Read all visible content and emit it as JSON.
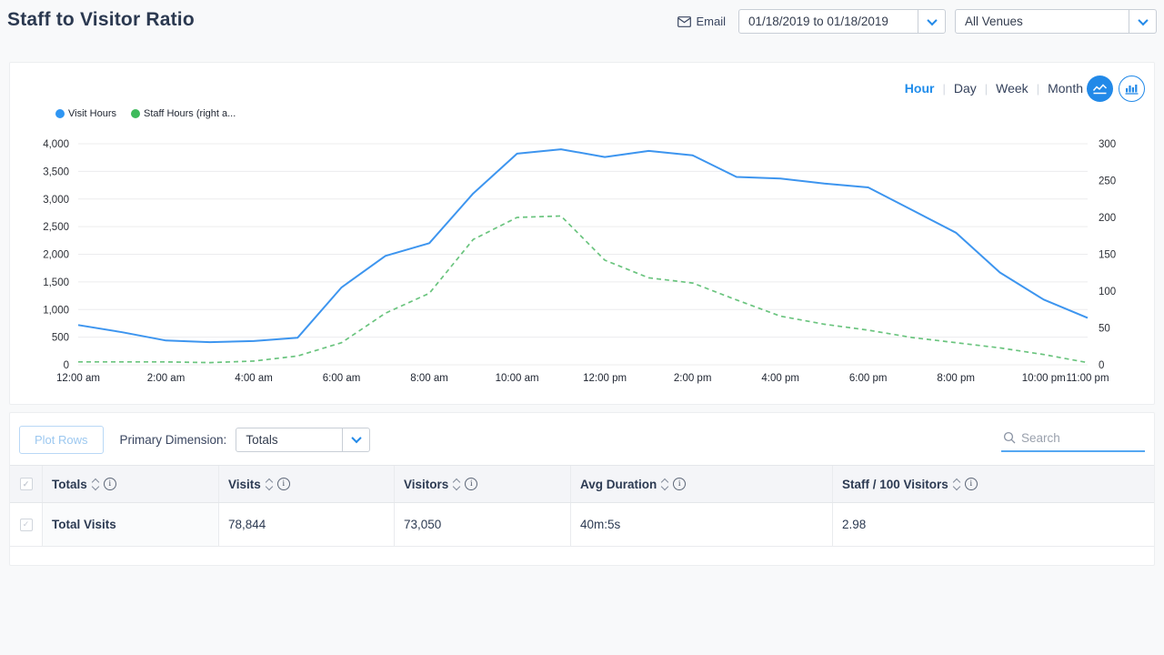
{
  "header": {
    "title": "Staff to Visitor Ratio",
    "email_label": "Email",
    "date_range": "01/18/2019 to 01/18/2019",
    "venue_filter": "All Venues"
  },
  "chart": {
    "granularity_tabs": [
      "Hour",
      "Day",
      "Week",
      "Month"
    ],
    "active_tab": "Hour",
    "separator": "|",
    "legend": [
      {
        "label": "Visit Hours",
        "color": "#2f96f3"
      },
      {
        "label": "Staff Hours (right a...",
        "color": "#3eba5b"
      }
    ]
  },
  "chart_data": {
    "type": "line",
    "title": "Staff to Visitor Ratio by Hour",
    "x": [
      "12:00 am",
      "1:00 am",
      "2:00 am",
      "3:00 am",
      "4:00 am",
      "5:00 am",
      "6:00 am",
      "7:00 am",
      "8:00 am",
      "9:00 am",
      "10:00 am",
      "11:00 am",
      "12:00 pm",
      "1:00 pm",
      "2:00 pm",
      "3:00 pm",
      "4:00 pm",
      "5:00 pm",
      "6:00 pm",
      "7:00 pm",
      "8:00 pm",
      "9:00 pm",
      "10:00 pm",
      "11:00 pm"
    ],
    "x_ticks": [
      {
        "label": "12:00 am",
        "i": 0
      },
      {
        "label": "2:00 am",
        "i": 2
      },
      {
        "label": "4:00 am",
        "i": 4
      },
      {
        "label": "6:00 am",
        "i": 6
      },
      {
        "label": "8:00 am",
        "i": 8
      },
      {
        "label": "10:00 am",
        "i": 10
      },
      {
        "label": "12:00 pm",
        "i": 12
      },
      {
        "label": "2:00 pm",
        "i": 14
      },
      {
        "label": "4:00 pm",
        "i": 16
      },
      {
        "label": "6:00 pm",
        "i": 18
      },
      {
        "label": "8:00 pm",
        "i": 20
      },
      {
        "label": "10:00 pm",
        "i": 22
      },
      {
        "label": "11:00 pm",
        "i": 23
      }
    ],
    "series": [
      {
        "name": "Visit Hours",
        "axis": "left",
        "style": "solid",
        "color": "#3d95ef",
        "width": 2,
        "values": [
          720,
          590,
          440,
          410,
          430,
          490,
          1400,
          1970,
          2200,
          3100,
          3820,
          3900,
          3760,
          3870,
          3790,
          3400,
          3370,
          3280,
          3210,
          2800,
          2390,
          1670,
          1180,
          850
        ]
      },
      {
        "name": "Staff Hours (right axis)",
        "axis": "right",
        "style": "dashed",
        "color": "#6ac47e",
        "width": 1.7,
        "values": [
          4,
          4,
          4,
          3,
          5,
          12,
          30,
          70,
          97,
          170,
          200,
          202,
          142,
          118,
          111,
          88,
          66,
          55,
          47,
          37,
          30,
          23,
          14,
          3
        ]
      }
    ],
    "left_axis": {
      "min": 0,
      "max": 4000,
      "step": 500
    },
    "right_axis": {
      "min": 0,
      "max": 300,
      "step": 50
    },
    "grid": "horizontal",
    "legend_position": "top-left"
  },
  "table": {
    "plot_rows_label": "Plot Rows",
    "primary_dimension_label": "Primary Dimension:",
    "primary_dimension_value": "Totals",
    "search_placeholder": "Search",
    "columns": [
      "Totals",
      "Visits",
      "Visitors",
      "Avg Duration",
      "Staff / 100 Visitors"
    ],
    "rows": [
      {
        "totals": "Total Visits",
        "visits": "78,844",
        "visitors": "73,050",
        "avg_duration": "40m:5s",
        "staff_per_100_visitors": "2.98"
      }
    ]
  }
}
